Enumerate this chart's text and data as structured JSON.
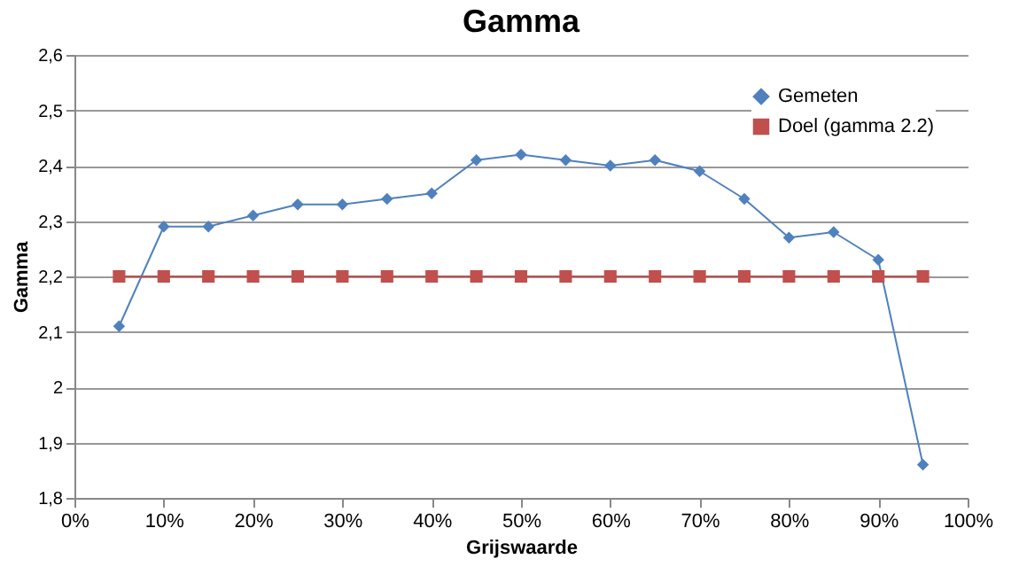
{
  "chart_data": {
    "type": "line",
    "title": "Gamma",
    "xlabel": "Grijswaarde",
    "ylabel": "Gamma",
    "x": [
      5,
      10,
      15,
      20,
      25,
      30,
      35,
      40,
      45,
      50,
      55,
      60,
      65,
      70,
      75,
      80,
      85,
      90,
      95
    ],
    "series": [
      {
        "name": "Gemeten",
        "color": "#4f81bd",
        "marker": "diamond",
        "values": [
          2.11,
          2.29,
          2.29,
          2.31,
          2.33,
          2.33,
          2.34,
          2.35,
          2.41,
          2.42,
          2.41,
          2.4,
          2.41,
          2.39,
          2.34,
          2.27,
          2.28,
          2.23,
          1.86
        ]
      },
      {
        "name": "Doel (gamma 2.2)",
        "color": "#c0504d",
        "marker": "square",
        "values": [
          2.2,
          2.2,
          2.2,
          2.2,
          2.2,
          2.2,
          2.2,
          2.2,
          2.2,
          2.2,
          2.2,
          2.2,
          2.2,
          2.2,
          2.2,
          2.2,
          2.2,
          2.2,
          2.2
        ]
      }
    ],
    "xlim": [
      0,
      100
    ],
    "xticks": [
      {
        "value": 0,
        "label": "0%"
      },
      {
        "value": 10,
        "label": "10%"
      },
      {
        "value": 20,
        "label": "20%"
      },
      {
        "value": 30,
        "label": "30%"
      },
      {
        "value": 40,
        "label": "40%"
      },
      {
        "value": 50,
        "label": "50%"
      },
      {
        "value": 60,
        "label": "60%"
      },
      {
        "value": 70,
        "label": "70%"
      },
      {
        "value": 80,
        "label": "80%"
      },
      {
        "value": 90,
        "label": "90%"
      },
      {
        "value": 100,
        "label": "100%"
      }
    ],
    "ylim": [
      1.8,
      2.6
    ],
    "yticks": [
      {
        "value": 1.8,
        "label": "1,8"
      },
      {
        "value": 1.9,
        "label": "1,9"
      },
      2,
      {
        "value": 2.1,
        "label": "2,1"
      },
      {
        "value": 2.2,
        "label": "2,2"
      },
      {
        "value": 2.3,
        "label": "2,3"
      },
      {
        "value": 2.4,
        "label": "2,4"
      },
      {
        "value": 2.5,
        "label": "2,5"
      },
      {
        "value": 2.6,
        "label": "2,6"
      }
    ],
    "grid": "y",
    "legend": "top right"
  }
}
